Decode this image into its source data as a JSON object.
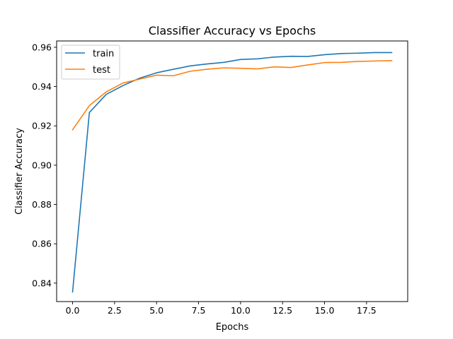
{
  "chart_data": {
    "type": "line",
    "title": "Classifier Accuracy vs Epochs",
    "xlabel": "Epochs",
    "ylabel": "Classifier Accuracy",
    "xlim": [
      -0.95,
      19.95
    ],
    "ylim": [
      0.8306,
      0.9632
    ],
    "xticks": [
      0.0,
      2.5,
      5.0,
      7.5,
      10.0,
      12.5,
      15.0,
      17.5
    ],
    "xtick_labels": [
      "0.0",
      "2.5",
      "5.0",
      "7.5",
      "10.0",
      "12.5",
      "15.0",
      "17.5"
    ],
    "yticks": [
      0.84,
      0.86,
      0.88,
      0.9,
      0.92,
      0.94,
      0.96
    ],
    "ytick_labels": [
      "0.84",
      "0.86",
      "0.88",
      "0.90",
      "0.92",
      "0.94",
      "0.96"
    ],
    "grid": false,
    "legend_position": "top-left",
    "x": [
      0,
      1,
      2,
      3,
      4,
      5,
      6,
      7,
      8,
      9,
      10,
      11,
      12,
      13,
      14,
      15,
      16,
      17,
      18,
      19
    ],
    "series": [
      {
        "name": "train",
        "color": "#1f77b4",
        "values": [
          0.8355,
          0.9268,
          0.936,
          0.9405,
          0.9443,
          0.947,
          0.9488,
          0.9505,
          0.9515,
          0.9523,
          0.9538,
          0.9541,
          0.955,
          0.9554,
          0.9553,
          0.9562,
          0.9568,
          0.957,
          0.9573,
          0.9573
        ]
      },
      {
        "name": "test",
        "color": "#ff7f0e",
        "values": [
          0.918,
          0.9303,
          0.9373,
          0.9418,
          0.9438,
          0.9458,
          0.9455,
          0.9478,
          0.9488,
          0.9495,
          0.9493,
          0.949,
          0.95,
          0.9497,
          0.951,
          0.9522,
          0.9523,
          0.9528,
          0.953,
          0.9532
        ]
      }
    ]
  }
}
